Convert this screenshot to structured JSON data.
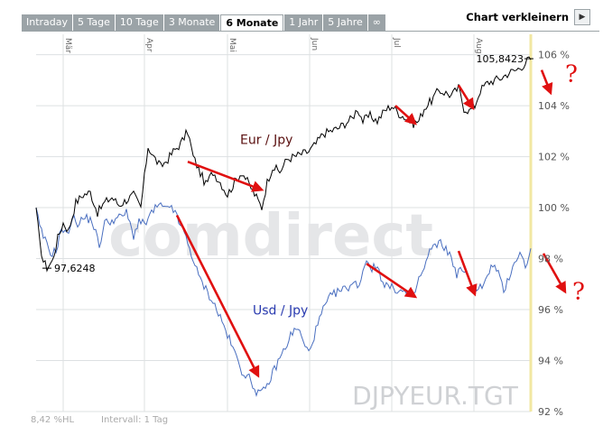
{
  "tabs": [
    {
      "label": "Intraday",
      "active": false
    },
    {
      "label": "5 Tage",
      "active": false
    },
    {
      "label": "10 Tage",
      "active": false
    },
    {
      "label": "3 Monate",
      "active": false
    },
    {
      "label": "6 Monate",
      "active": true
    },
    {
      "label": "1 Jahr",
      "active": false
    },
    {
      "label": "5 Jahre",
      "active": false
    },
    {
      "label": "∞",
      "active": false
    }
  ],
  "toolbar": {
    "shrink_label": "Chart verkleinern",
    "shrink_icon": "play-arrow-icon"
  },
  "footer": {
    "volatility": "8,42 %HL",
    "interval": "Intervall: 1 Tag"
  },
  "watermark": {
    "brand": "comdirect",
    "symbol": "DJPYEUR.TGT"
  },
  "chart_data": {
    "type": "line",
    "x": [
      0,
      2,
      4,
      6,
      8,
      10,
      12,
      14,
      16,
      18,
      20,
      22,
      24,
      26,
      28,
      30,
      32,
      34,
      36,
      38,
      40,
      42,
      44,
      46,
      48,
      50,
      52,
      54,
      56,
      58,
      60,
      62,
      64,
      66,
      68,
      70,
      72,
      74,
      76,
      78,
      80,
      82,
      84,
      86,
      88,
      90,
      92,
      94,
      96,
      98,
      100,
      102,
      104,
      106,
      108,
      110,
      112,
      114,
      116,
      118,
      120,
      122,
      124,
      126,
      128,
      130,
      132,
      134,
      136,
      138,
      140,
      142,
      144,
      146,
      148,
      150,
      152,
      154,
      156,
      158,
      160,
      162,
      164,
      166,
      168,
      170,
      172,
      174,
      176,
      178,
      180,
      182,
      184,
      186,
      188,
      190,
      192,
      194,
      196,
      198,
      200,
      202,
      204,
      206,
      208,
      210,
      212,
      214,
      216,
      218,
      220,
      222,
      224,
      226,
      228,
      230,
      232,
      234,
      236,
      238,
      240,
      242,
      244,
      246,
      248,
      250,
      252,
      254,
      256,
      258,
      260,
      262,
      264,
      266,
      268,
      270,
      272,
      274,
      276,
      278,
      280,
      282,
      284,
      286,
      288,
      290,
      292,
      294,
      296,
      298,
      300,
      302,
      304,
      306,
      308,
      310,
      312,
      314,
      316,
      318,
      320,
      322,
      324,
      326,
      328,
      330,
      332,
      334,
      336,
      338,
      340,
      342,
      344,
      346,
      348,
      350,
      352,
      354,
      356,
      358,
      360,
      362,
      364,
      366,
      368,
      370,
      372,
      374,
      376,
      378,
      380,
      382,
      384,
      386,
      388,
      390,
      392,
      394,
      396,
      398,
      400,
      402,
      404,
      406,
      408,
      410,
      412,
      414,
      416,
      418,
      420,
      422,
      424,
      426,
      428,
      430,
      432,
      434,
      436,
      438,
      440,
      442,
      444,
      446,
      448,
      450,
      452,
      454,
      456,
      458,
      460,
      462,
      464,
      466,
      468,
      470,
      472,
      474,
      476,
      478,
      480,
      482,
      484,
      486,
      488,
      490,
      492,
      494,
      496,
      498,
      500,
      502,
      504,
      506,
      508,
      510,
      512,
      514,
      516,
      518,
      520,
      522,
      524,
      526,
      528,
      530,
      532,
      534,
      536,
      538,
      540,
      542,
      544,
      546,
      548
    ],
    "x_month_labels": [
      {
        "label": "Mär",
        "x": 30
      },
      {
        "label": "Apr",
        "x": 120
      },
      {
        "label": "Mai",
        "x": 212
      },
      {
        "label": "Jun",
        "x": 303
      },
      {
        "label": "Jul",
        "x": 394
      },
      {
        "label": "Aug",
        "x": 485
      }
    ],
    "xlim": [
      0,
      548
    ],
    "ylim": [
      92,
      106.8
    ],
    "y_ticks": [
      {
        "value": 92,
        "label": "92 %"
      },
      {
        "value": 94,
        "label": "94 %"
      },
      {
        "value": 96,
        "label": "96 %"
      },
      {
        "value": 98,
        "label": "98 %"
      },
      {
        "value": 100,
        "label": "100 %"
      },
      {
        "value": 102,
        "label": "102 %"
      },
      {
        "value": 104,
        "label": "104 %"
      },
      {
        "value": 106,
        "label": "106 %"
      }
    ],
    "series": [
      {
        "name": "Eur / Jpy",
        "color": "#000000",
        "label_at": {
          "x": 226,
          "y": 102.5
        }
      },
      {
        "name": "Usd / Jpy",
        "color": "#4a6fc0",
        "label_at": {
          "x": 240,
          "y": 95.8
        }
      }
    ],
    "data_labels": [
      {
        "text": "97,6248",
        "x": 12,
        "y": 97.6248,
        "anchor": "start",
        "dx": 8
      },
      {
        "text": "105,8423",
        "x": 546,
        "y": 105.8423,
        "anchor": "end",
        "dx": -6
      }
    ],
    "eur_anchors": [
      [
        0,
        100
      ],
      [
        4,
        98.6
      ],
      [
        8,
        97.9
      ],
      [
        12,
        97.65
      ],
      [
        18,
        97.9
      ],
      [
        24,
        98.8
      ],
      [
        30,
        99.4
      ],
      [
        36,
        99.1
      ],
      [
        44,
        100.2
      ],
      [
        52,
        100.5
      ],
      [
        60,
        100.6
      ],
      [
        68,
        99.8
      ],
      [
        76,
        100.2
      ],
      [
        84,
        100.4
      ],
      [
        92,
        100.1
      ],
      [
        100,
        100.3
      ],
      [
        108,
        100.5
      ],
      [
        116,
        100.0
      ],
      [
        124,
        102.4
      ],
      [
        130,
        102.0
      ],
      [
        138,
        101.6
      ],
      [
        146,
        101.9
      ],
      [
        152,
        102.2
      ],
      [
        160,
        102.5
      ],
      [
        168,
        103.0
      ],
      [
        174,
        102.0
      ],
      [
        180,
        101.5
      ],
      [
        188,
        100.9
      ],
      [
        196,
        101.4
      ],
      [
        204,
        101.0
      ],
      [
        212,
        100.5
      ],
      [
        220,
        101.0
      ],
      [
        228,
        101.4
      ],
      [
        236,
        100.9
      ],
      [
        244,
        100.4
      ],
      [
        250,
        100.0
      ],
      [
        256,
        101.0
      ],
      [
        262,
        101.6
      ],
      [
        270,
        101.4
      ],
      [
        278,
        101.9
      ],
      [
        286,
        102.0
      ],
      [
        294,
        102.1
      ],
      [
        302,
        102.2
      ],
      [
        310,
        102.5
      ],
      [
        318,
        102.9
      ],
      [
        326,
        103.0
      ],
      [
        334,
        103.1
      ],
      [
        342,
        103.3
      ],
      [
        350,
        103.5
      ],
      [
        356,
        103.9
      ],
      [
        362,
        103.4
      ],
      [
        370,
        103.6
      ],
      [
        378,
        103.4
      ],
      [
        386,
        103.8
      ],
      [
        394,
        104.0
      ],
      [
        402,
        103.7
      ],
      [
        410,
        103.5
      ],
      [
        418,
        103.3
      ],
      [
        424,
        103.4
      ],
      [
        430,
        103.9
      ],
      [
        438,
        104.2
      ],
      [
        446,
        104.6
      ],
      [
        454,
        104.5
      ],
      [
        460,
        104.4
      ],
      [
        468,
        104.7
      ],
      [
        474,
        103.9
      ],
      [
        480,
        103.8
      ],
      [
        486,
        104.0
      ],
      [
        492,
        104.6
      ],
      [
        500,
        104.9
      ],
      [
        508,
        105.0
      ],
      [
        516,
        105.1
      ],
      [
        524,
        105.3
      ],
      [
        532,
        105.4
      ],
      [
        540,
        105.6
      ],
      [
        546,
        105.84
      ],
      [
        548,
        105.8
      ]
    ],
    "usd_anchors": [
      [
        0,
        100
      ],
      [
        4,
        99.2
      ],
      [
        10,
        98.7
      ],
      [
        16,
        98.2
      ],
      [
        22,
        98.3
      ],
      [
        28,
        99.2
      ],
      [
        34,
        98.9
      ],
      [
        40,
        99.6
      ],
      [
        46,
        99.4
      ],
      [
        54,
        99.6
      ],
      [
        62,
        99.5
      ],
      [
        70,
        98.5
      ],
      [
        76,
        99.4
      ],
      [
        84,
        99.5
      ],
      [
        92,
        99.6
      ],
      [
        100,
        99.8
      ],
      [
        108,
        98.9
      ],
      [
        114,
        99.5
      ],
      [
        120,
        99.3
      ],
      [
        128,
        99.8
      ],
      [
        136,
        100.1
      ],
      [
        144,
        99.9
      ],
      [
        150,
        100.1
      ],
      [
        156,
        99.6
      ],
      [
        164,
        99.0
      ],
      [
        172,
        98.2
      ],
      [
        180,
        97.3
      ],
      [
        188,
        96.8
      ],
      [
        196,
        96.3
      ],
      [
        204,
        95.7
      ],
      [
        212,
        95.0
      ],
      [
        220,
        94.3
      ],
      [
        228,
        93.6
      ],
      [
        236,
        93.3
      ],
      [
        244,
        92.8
      ],
      [
        250,
        92.7
      ],
      [
        256,
        93.0
      ],
      [
        262,
        93.5
      ],
      [
        270,
        94.1
      ],
      [
        276,
        94.5
      ],
      [
        282,
        95.0
      ],
      [
        290,
        95.3
      ],
      [
        296,
        94.7
      ],
      [
        302,
        94.3
      ],
      [
        310,
        95.2
      ],
      [
        318,
        96.0
      ],
      [
        326,
        96.5
      ],
      [
        334,
        96.7
      ],
      [
        342,
        96.8
      ],
      [
        350,
        97.0
      ],
      [
        358,
        97.0
      ],
      [
        366,
        98.0
      ],
      [
        372,
        97.6
      ],
      [
        378,
        97.7
      ],
      [
        384,
        97.1
      ],
      [
        390,
        96.9
      ],
      [
        398,
        96.8
      ],
      [
        406,
        96.7
      ],
      [
        414,
        96.6
      ],
      [
        418,
        96.5
      ],
      [
        424,
        97.2
      ],
      [
        430,
        97.6
      ],
      [
        436,
        98.3
      ],
      [
        442,
        98.5
      ],
      [
        448,
        98.6
      ],
      [
        454,
        98.4
      ],
      [
        460,
        98.0
      ],
      [
        466,
        97.4
      ],
      [
        472,
        97.6
      ],
      [
        478,
        97.2
      ],
      [
        484,
        97.0
      ],
      [
        490,
        96.8
      ],
      [
        498,
        97.1
      ],
      [
        506,
        97.8
      ],
      [
        512,
        97.4
      ],
      [
        518,
        96.7
      ],
      [
        524,
        97.3
      ],
      [
        530,
        97.9
      ],
      [
        536,
        98.2
      ],
      [
        542,
        97.7
      ],
      [
        548,
        98.4
      ]
    ],
    "annotation_arrows": [
      {
        "from": [
          168,
          101.8
        ],
        "to": [
          250,
          100.7
        ]
      },
      {
        "from": [
          156,
          99.7
        ],
        "to": [
          246,
          93.4
        ]
      },
      {
        "from": [
          398,
          104.0
        ],
        "to": [
          420,
          103.3
        ]
      },
      {
        "from": [
          468,
          104.8
        ],
        "to": [
          484,
          103.9
        ]
      },
      {
        "from": [
          560,
          105.4
        ],
        "to": [
          570,
          104.5
        ]
      },
      {
        "from": [
          366,
          97.8
        ],
        "to": [
          420,
          96.5
        ]
      },
      {
        "from": [
          468,
          98.3
        ],
        "to": [
          486,
          96.6
        ]
      },
      {
        "from": [
          562,
          98.2
        ],
        "to": [
          586,
          96.7
        ]
      }
    ],
    "annotation_texts": [
      {
        "text": "?",
        "x": 586,
        "y": 104.95
      },
      {
        "text": "?",
        "x": 594,
        "y": 96.4
      }
    ],
    "highlight_line_x": 548
  }
}
